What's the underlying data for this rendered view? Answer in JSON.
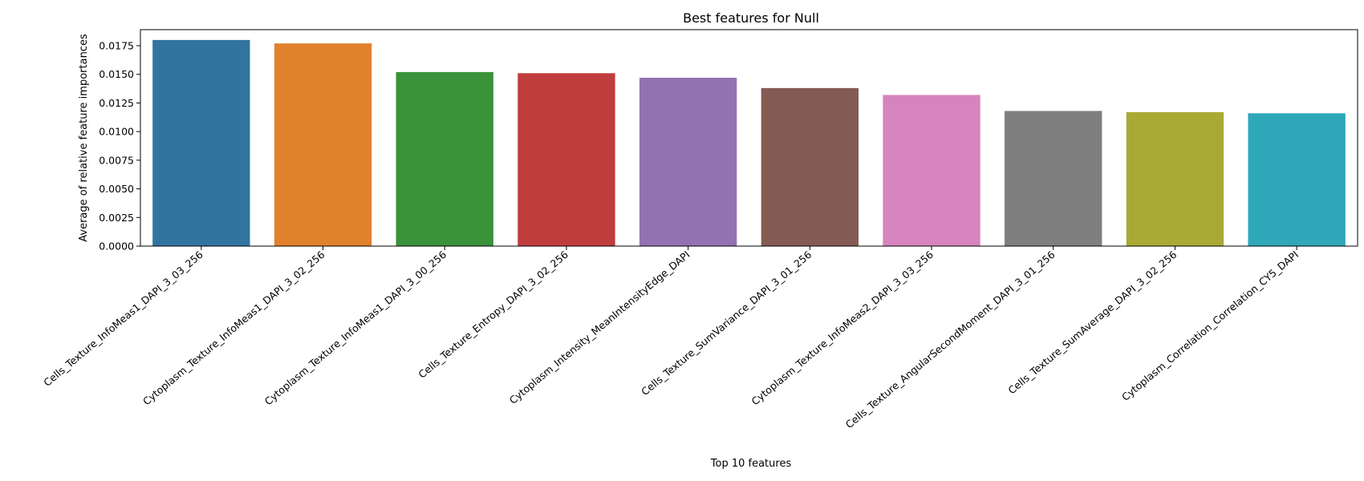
{
  "chart_data": {
    "type": "bar",
    "title": "Best features for Null",
    "xlabel": "Top 10 features",
    "ylabel": "Average of relative feature importances",
    "ylim": [
      0,
      0.0189
    ],
    "yticks": [
      "0.0000",
      "0.0025",
      "0.0050",
      "0.0075",
      "0.0100",
      "0.0125",
      "0.0150",
      "0.0175"
    ],
    "grid": false,
    "legend": "none",
    "categories": [
      "Cells_Texture_InfoMeas1_DAPI_3_03_256",
      "Cytoplasm_Texture_InfoMeas1_DAPI_3_02_256",
      "Cytoplasm_Texture_InfoMeas1_DAPI_3_00_256",
      "Cells_Texture_Entropy_DAPI_3_02_256",
      "Cytoplasm_Intensity_MeanIntensityEdge_DAPI",
      "Cells_Texture_SumVariance_DAPI_3_01_256",
      "Cytoplasm_Texture_InfoMeas2_DAPI_3_03_256",
      "Cells_Texture_AngularSecondMoment_DAPI_3_01_256",
      "Cells_Texture_SumAverage_DAPI_3_02_256",
      "Cytoplasm_Correlation_Correlation_CY5_DAPI"
    ],
    "values": [
      0.018,
      0.0177,
      0.0152,
      0.0151,
      0.0147,
      0.0138,
      0.0132,
      0.0118,
      0.0117,
      0.0116
    ],
    "colors": [
      "#3274a1",
      "#e1812c",
      "#3a923a",
      "#c03d3e",
      "#9372b2",
      "#845b53",
      "#d684bd",
      "#7f7f7f",
      "#a9aa35",
      "#2ea8b9"
    ]
  }
}
